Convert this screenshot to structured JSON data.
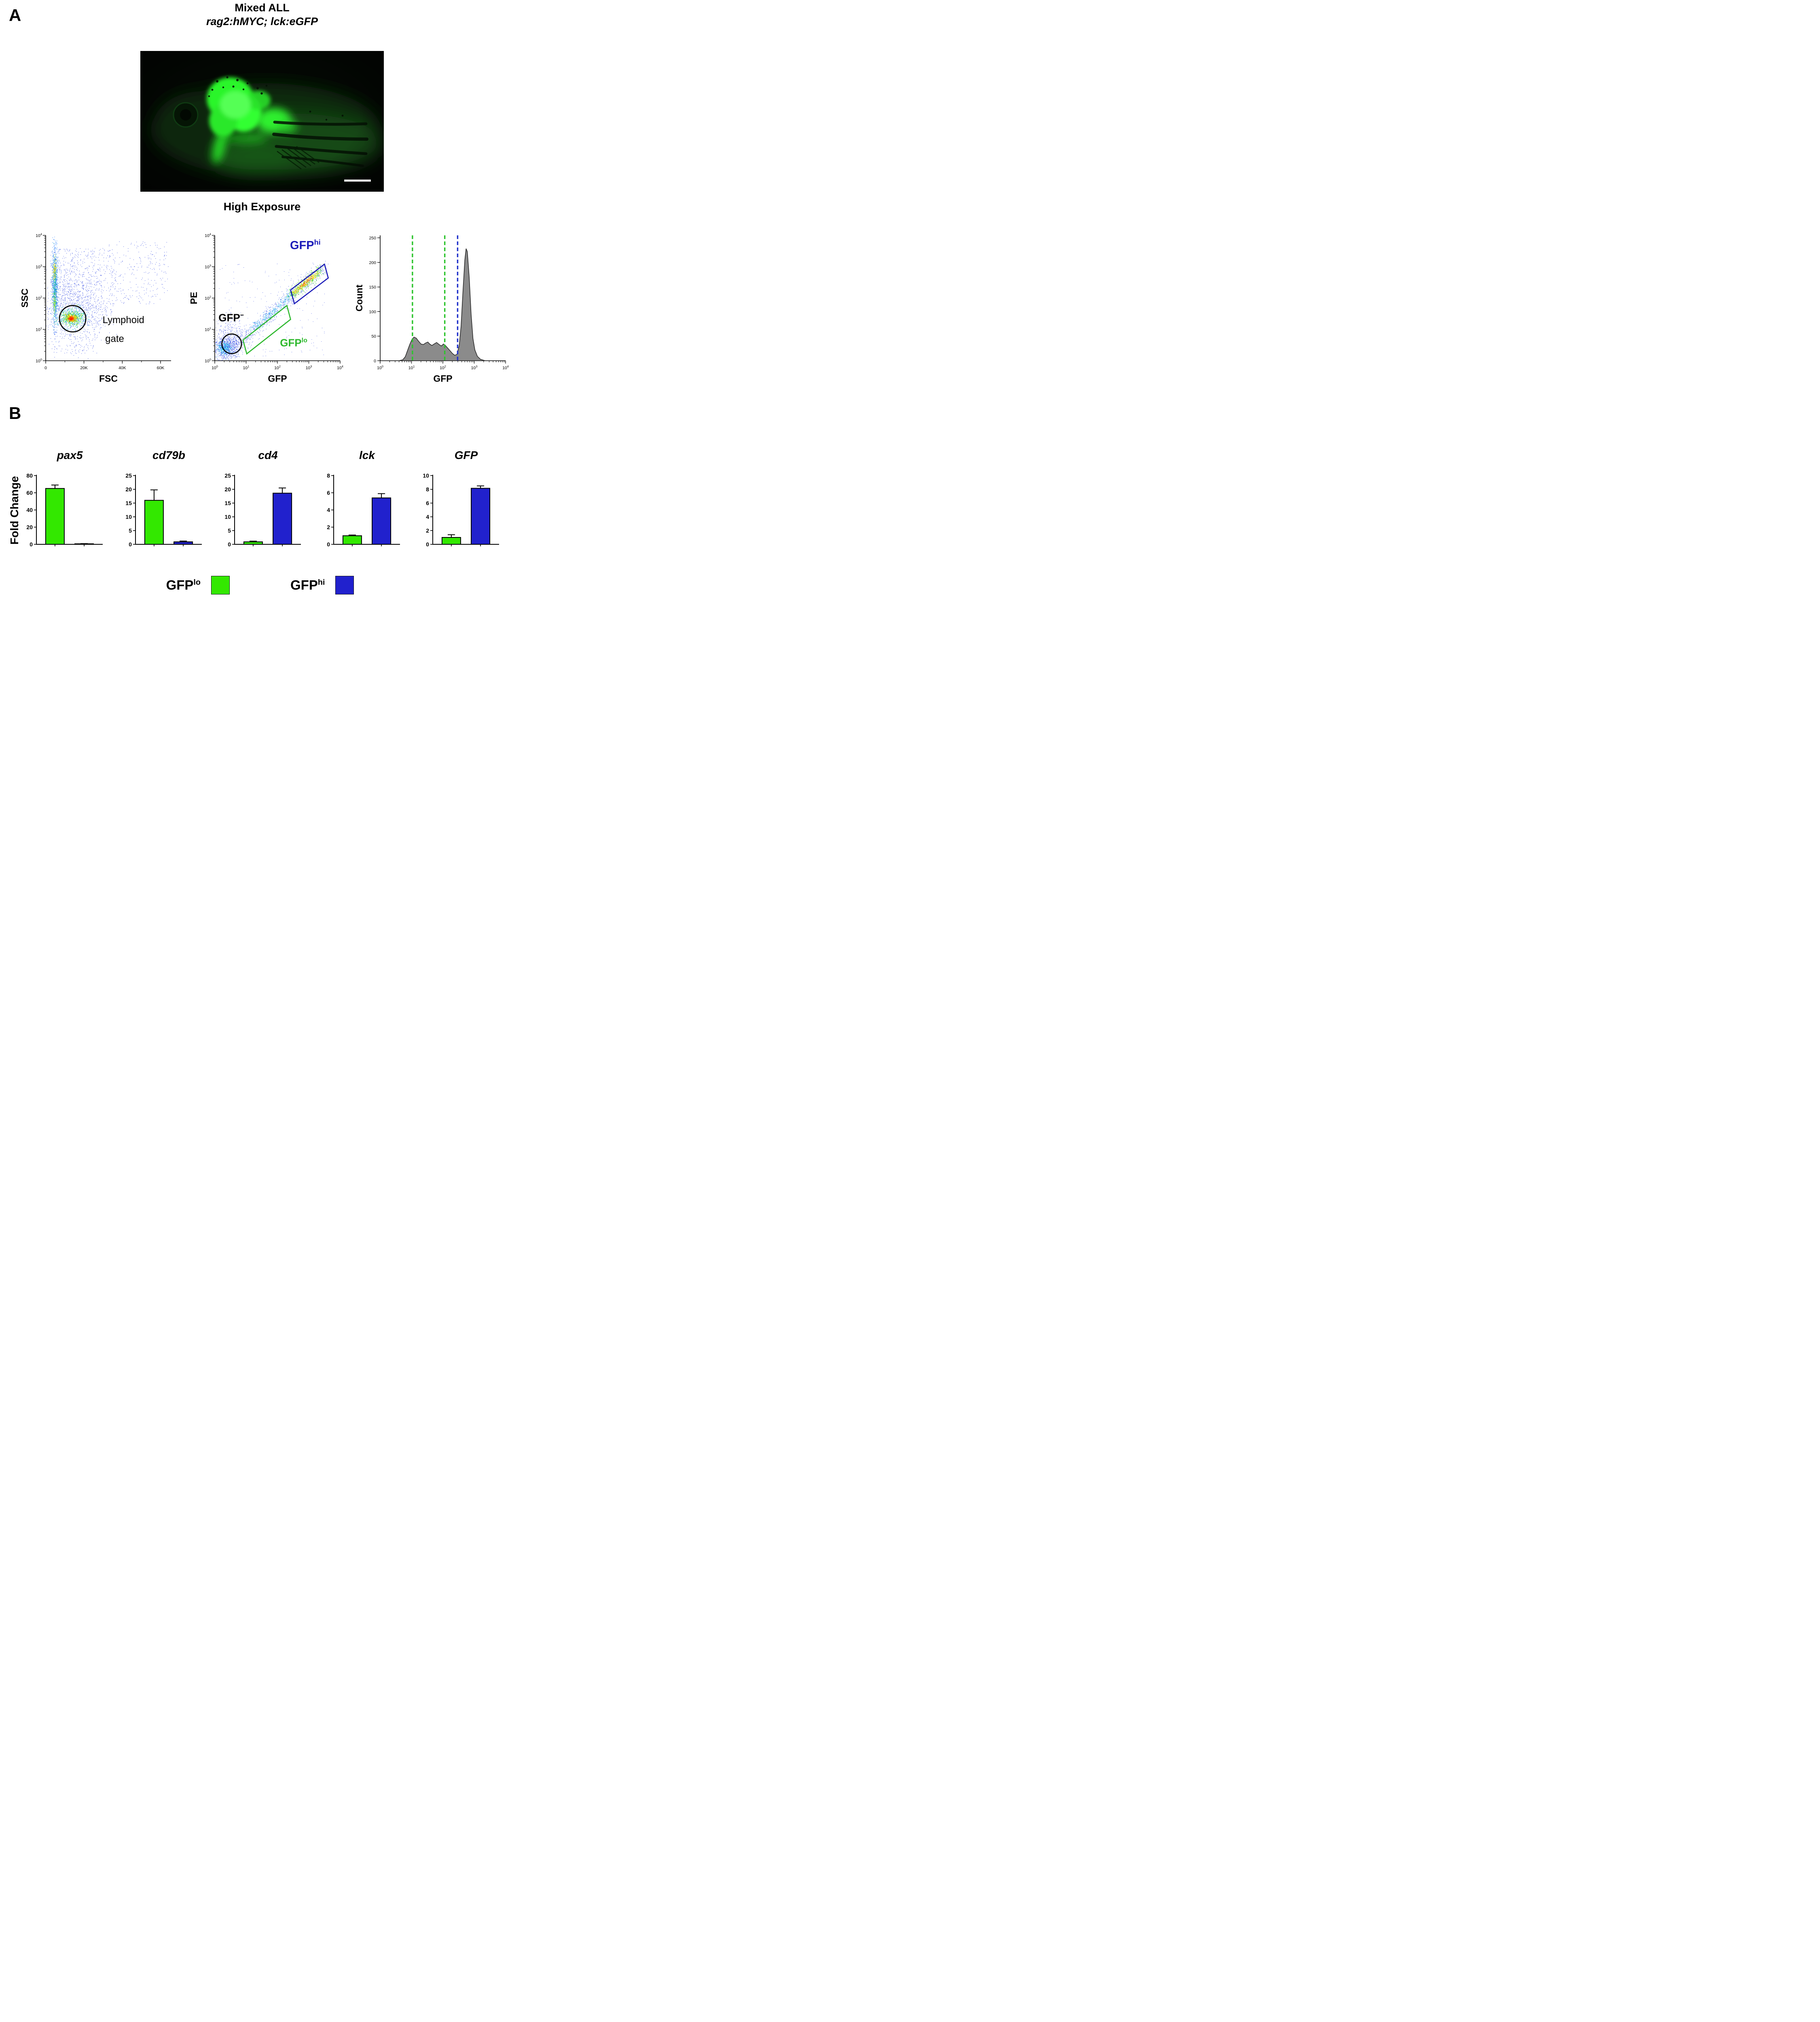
{
  "colors": {
    "gfp_lo": "#33e800",
    "gfp_hi": "#2121cd",
    "hist_fill": "#8b8b8b",
    "dash_green": "#2ec42e",
    "dash_blue": "#2233cc"
  },
  "panelA": {
    "label": "A",
    "title": "Mixed ALL",
    "subtitle": "rag2:hMYC; lck:eGFP",
    "caption": "High Exposure"
  },
  "panelB": {
    "label": "B",
    "ylabel": "Fold Change"
  },
  "legend": {
    "lo": {
      "base": "GFP",
      "sup": "lo"
    },
    "hi": {
      "base": "GFP",
      "sup": "hi"
    }
  },
  "chart_data": [
    {
      "type": "scatter",
      "xlabel": "FSC",
      "ylabel": "SSC",
      "x_axis": {
        "scale": "linear",
        "ticks": [
          {
            "f": 0,
            "label": "0"
          },
          {
            "f": 0.305,
            "label": "20K"
          },
          {
            "f": 0.611,
            "label": "40K"
          },
          {
            "f": 0.916,
            "label": "60K"
          }
        ],
        "minor": [
          0.153,
          0.458,
          0.764
        ]
      },
      "y_axis": {
        "scale": "log",
        "decades": [
          0,
          4
        ]
      },
      "clusters": [
        {
          "kind": "uniform",
          "n": 650,
          "x": 0.04,
          "y": 0.28,
          "w": 0.5,
          "h": 0.62,
          "color": "#2038e0",
          "r": 1.2
        },
        {
          "kind": "uniform",
          "n": 260,
          "x": 0.5,
          "y": 0.45,
          "w": 0.48,
          "h": 0.5,
          "color": "#2038e0",
          "r": 1.2
        },
        {
          "kind": "uniform",
          "n": 90,
          "x": 0.05,
          "y": 0.05,
          "w": 0.35,
          "h": 0.22,
          "color": "#2038e0",
          "r": 1.2
        },
        {
          "kind": "gauss",
          "n": 800,
          "cx": 0.075,
          "cy": 0.6,
          "sx": 0.013,
          "sy": 0.17,
          "color": "#1976ff",
          "r": 1.3
        },
        {
          "kind": "gauss",
          "n": 300,
          "cx": 0.072,
          "cy": 0.58,
          "sx": 0.009,
          "sy": 0.13,
          "color": "#17c98c",
          "r": 1.3
        },
        {
          "kind": "gauss",
          "n": 90,
          "cx": 0.072,
          "cy": 0.72,
          "sx": 0.007,
          "sy": 0.04,
          "color": "#ffe000",
          "r": 1.4
        },
        {
          "kind": "gauss",
          "n": 60,
          "cx": 0.072,
          "cy": 0.47,
          "sx": 0.007,
          "sy": 0.04,
          "color": "#9bed00",
          "r": 1.4
        },
        {
          "kind": "gauss",
          "n": 900,
          "cx": 0.22,
          "cy": 0.42,
          "sx": 0.12,
          "sy": 0.15,
          "color": "#2038e0",
          "r": 1.2
        },
        {
          "kind": "gauss",
          "n": 380,
          "cx": 0.21,
          "cy": 0.345,
          "sx": 0.055,
          "sy": 0.04,
          "color": "#18c8f0",
          "r": 1.4
        },
        {
          "kind": "gauss",
          "n": 300,
          "cx": 0.21,
          "cy": 0.34,
          "sx": 0.038,
          "sy": 0.028,
          "color": "#2ee000",
          "r": 1.5
        },
        {
          "kind": "gauss",
          "n": 230,
          "cx": 0.21,
          "cy": 0.338,
          "sx": 0.026,
          "sy": 0.018,
          "color": "#ffe000",
          "r": 1.5
        },
        {
          "kind": "gauss",
          "n": 130,
          "cx": 0.208,
          "cy": 0.336,
          "sx": 0.017,
          "sy": 0.012,
          "color": "#ff8c00",
          "r": 1.5
        },
        {
          "kind": "gauss",
          "n": 90,
          "cx": 0.207,
          "cy": 0.335,
          "sx": 0.011,
          "sy": 0.008,
          "color": "#ff2800",
          "r": 1.6
        }
      ],
      "gates": [
        {
          "shape": "circle",
          "cx": 0.215,
          "cy": 0.335,
          "r": 0.105,
          "color": "#000000",
          "width": 2.6
        }
      ],
      "labels": [
        {
          "x": 0.62,
          "y": 0.3,
          "text": "Lymphoid",
          "color": "#000000",
          "size": 24,
          "weight": 400,
          "anchor": "middle"
        },
        {
          "x": 0.55,
          "y": 0.15,
          "text": "gate",
          "color": "#000000",
          "size": 24,
          "weight": 400,
          "anchor": "middle"
        }
      ]
    },
    {
      "type": "scatter",
      "xlabel": "GFP",
      "ylabel": "PE",
      "x_axis": {
        "scale": "log",
        "decades": [
          0,
          4
        ]
      },
      "y_axis": {
        "scale": "log",
        "decades": [
          0,
          4
        ]
      },
      "clusters": [
        {
          "kind": "gauss",
          "n": 800,
          "cx": 0.09,
          "cy": 0.1,
          "sx": 0.055,
          "sy": 0.05,
          "color": "#2038e0",
          "r": 1.2
        },
        {
          "kind": "gauss",
          "n": 260,
          "cx": 0.08,
          "cy": 0.095,
          "sx": 0.028,
          "sy": 0.025,
          "color": "#18c8f0",
          "r": 1.4
        },
        {
          "kind": "gauss",
          "n": 220,
          "cx": 0.12,
          "cy": 0.2,
          "sx": 0.06,
          "sy": 0.09,
          "color": "#2038e0",
          "r": 1.2
        },
        {
          "kind": "uniform",
          "n": 170,
          "x": 0.03,
          "y": 0.03,
          "w": 0.85,
          "h": 0.75,
          "color": "#2038e0",
          "r": 1.1
        },
        {
          "kind": "streak",
          "n": 800,
          "x1": 0.14,
          "y1": 0.1,
          "x2": 0.86,
          "y2": 0.74,
          "jx": 0.028,
          "jy": 0.03,
          "color": "#2038e0",
          "r": 1.2
        },
        {
          "kind": "streak",
          "n": 250,
          "x1": 0.3,
          "y1": 0.245,
          "x2": 0.62,
          "y2": 0.53,
          "jx": 0.016,
          "jy": 0.018,
          "color": "#18c8f0",
          "r": 1.3
        },
        {
          "kind": "streak",
          "n": 330,
          "x1": 0.6,
          "y1": 0.515,
          "x2": 0.85,
          "y2": 0.725,
          "jx": 0.02,
          "jy": 0.022,
          "color": "#2ee000",
          "r": 1.4
        },
        {
          "kind": "streak",
          "n": 260,
          "x1": 0.62,
          "y1": 0.53,
          "x2": 0.83,
          "y2": 0.71,
          "jx": 0.01,
          "jy": 0.012,
          "color": "#ffe000",
          "r": 1.5
        },
        {
          "kind": "streak",
          "n": 60,
          "x1": 0.68,
          "y1": 0.585,
          "x2": 0.78,
          "y2": 0.67,
          "jx": 0.006,
          "jy": 0.007,
          "color": "#ff5a00",
          "r": 1.5
        }
      ],
      "gates": [
        {
          "shape": "circle",
          "cx": 0.135,
          "cy": 0.135,
          "r": 0.078,
          "color": "#000000",
          "width": 2.6
        },
        {
          "shape": "poly",
          "pts": [
            [
              0.255,
              0.055
            ],
            [
              0.225,
              0.165
            ],
            [
              0.575,
              0.44
            ],
            [
              0.605,
              0.33
            ]
          ],
          "color": "#2db82d",
          "width": 2.6
        },
        {
          "shape": "poly",
          "pts": [
            [
              0.635,
              0.455
            ],
            [
              0.605,
              0.565
            ],
            [
              0.875,
              0.77
            ],
            [
              0.905,
              0.66
            ]
          ],
          "color": "#1a1ab8",
          "width": 2.6
        }
      ],
      "labels": [
        {
          "x": 0.03,
          "y": 0.315,
          "base": "GFP",
          "sup": "−",
          "color": "#000000",
          "size": 26,
          "weight": 700,
          "anchor": "start"
        },
        {
          "x": 0.52,
          "y": 0.115,
          "base": "GFP",
          "sup": "lo",
          "color": "#2db82d",
          "size": 26,
          "weight": 700,
          "anchor": "start"
        },
        {
          "x": 0.6,
          "y": 0.89,
          "base": "GFP",
          "sup": "hi",
          "color": "#1a1ab8",
          "size": 29,
          "weight": 700,
          "anchor": "start"
        }
      ]
    },
    {
      "type": "area",
      "xlabel": "GFP",
      "ylabel": "Count",
      "x_axis": {
        "scale": "log",
        "decades": [
          0,
          4
        ]
      },
      "y_axis": {
        "scale": "linear",
        "max": 255,
        "ticks": [
          0,
          50,
          100,
          150,
          200,
          250
        ]
      },
      "fill": "#8b8b8b",
      "stroke": "#2b2b2b",
      "points": [
        [
          0.6,
          0
        ],
        [
          0.72,
          2
        ],
        [
          0.8,
          8
        ],
        [
          0.88,
          22
        ],
        [
          0.95,
          34
        ],
        [
          1.02,
          44
        ],
        [
          1.08,
          48
        ],
        [
          1.15,
          46
        ],
        [
          1.22,
          40
        ],
        [
          1.3,
          34
        ],
        [
          1.38,
          33
        ],
        [
          1.45,
          36
        ],
        [
          1.52,
          38
        ],
        [
          1.58,
          34
        ],
        [
          1.65,
          31
        ],
        [
          1.72,
          34
        ],
        [
          1.8,
          37
        ],
        [
          1.88,
          33
        ],
        [
          1.95,
          30
        ],
        [
          2.02,
          34
        ],
        [
          2.08,
          31
        ],
        [
          2.15,
          26
        ],
        [
          2.22,
          21
        ],
        [
          2.3,
          15
        ],
        [
          2.38,
          11
        ],
        [
          2.45,
          13
        ],
        [
          2.52,
          30
        ],
        [
          2.58,
          70
        ],
        [
          2.64,
          140
        ],
        [
          2.7,
          205
        ],
        [
          2.74,
          228
        ],
        [
          2.78,
          222
        ],
        [
          2.84,
          170
        ],
        [
          2.9,
          95
        ],
        [
          2.96,
          45
        ],
        [
          3.02,
          22
        ],
        [
          3.1,
          9
        ],
        [
          3.2,
          3
        ],
        [
          3.35,
          0
        ]
      ],
      "dashed_lines": [
        {
          "x": 1.03,
          "color": "#2ec42e"
        },
        {
          "x": 2.06,
          "color": "#2ec42e"
        },
        {
          "x": 2.47,
          "color": "#2233cc"
        }
      ]
    },
    {
      "type": "bar",
      "title": "pax5",
      "ylim": [
        0,
        80
      ],
      "yticks": [
        0,
        20,
        40,
        60,
        80
      ],
      "categories": [
        "GFPlo",
        "GFPhi"
      ],
      "series": [
        {
          "name": "GFPlo",
          "value": 65,
          "err": 4,
          "color": "gfp_lo"
        },
        {
          "name": "GFPhi",
          "value": 0.6,
          "err": 0.2,
          "color": "gfp_hi"
        }
      ]
    },
    {
      "type": "bar",
      "title": "cd79b",
      "ylim": [
        0,
        25
      ],
      "yticks": [
        0,
        5,
        10,
        15,
        20,
        25
      ],
      "categories": [
        "GFPlo",
        "GFPhi"
      ],
      "series": [
        {
          "name": "GFPlo",
          "value": 16,
          "err": 3.8,
          "color": "gfp_lo"
        },
        {
          "name": "GFPhi",
          "value": 0.9,
          "err": 0.3,
          "color": "gfp_hi"
        }
      ]
    },
    {
      "type": "bar",
      "title": "cd4",
      "ylim": [
        0,
        25
      ],
      "yticks": [
        0,
        5,
        10,
        15,
        20,
        25
      ],
      "categories": [
        "GFPlo",
        "GFPhi"
      ],
      "series": [
        {
          "name": "GFPlo",
          "value": 0.9,
          "err": 0.25,
          "color": "gfp_lo"
        },
        {
          "name": "GFPhi",
          "value": 18.6,
          "err": 1.9,
          "color": "gfp_hi"
        }
      ]
    },
    {
      "type": "bar",
      "title": "lck",
      "ylim": [
        0,
        8
      ],
      "yticks": [
        0,
        2,
        4,
        6,
        8
      ],
      "categories": [
        "GFPlo",
        "GFPhi"
      ],
      "series": [
        {
          "name": "GFPlo",
          "value": 1.0,
          "err": 0.08,
          "color": "gfp_lo"
        },
        {
          "name": "GFPhi",
          "value": 5.4,
          "err": 0.5,
          "color": "gfp_hi"
        }
      ]
    },
    {
      "type": "bar",
      "title": "GFP",
      "ylim": [
        0,
        10
      ],
      "yticks": [
        0,
        2,
        4,
        6,
        8,
        10
      ],
      "categories": [
        "GFPlo",
        "GFPhi"
      ],
      "series": [
        {
          "name": "GFPlo",
          "value": 1.0,
          "err": 0.4,
          "color": "gfp_lo"
        },
        {
          "name": "GFPhi",
          "value": 8.15,
          "err": 0.35,
          "color": "gfp_hi"
        }
      ]
    }
  ]
}
